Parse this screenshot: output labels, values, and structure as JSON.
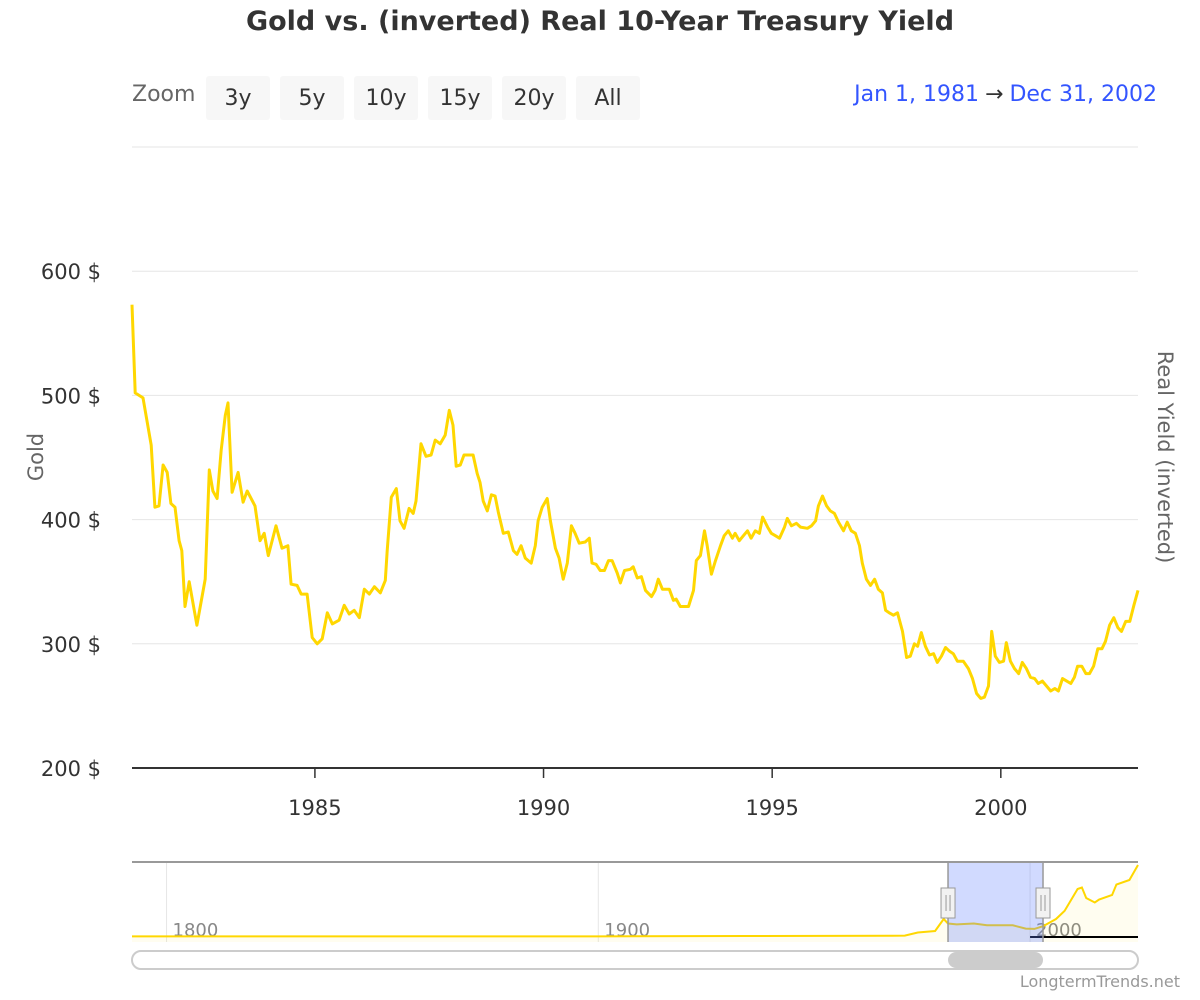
{
  "chart_data": {
    "type": "line",
    "title": "Gold vs. (inverted) Real 10-Year Treasury Yield",
    "ylabel": "Gold",
    "ylabel_right": "Real Yield (inverted)",
    "xlim": [
      1981,
      2003
    ],
    "ylim": [
      200,
      700
    ],
    "y_ticks": [
      200,
      300,
      400,
      500,
      600
    ],
    "y_tick_labels": [
      "200 $",
      "300 $",
      "400 $",
      "500 $",
      "600 $"
    ],
    "x_ticks": [
      1985,
      1990,
      1995,
      2000
    ],
    "x_tick_labels": [
      "1985",
      "1990",
      "1995",
      "2000"
    ],
    "grid": true,
    "series": [
      {
        "name": "Gold",
        "color": "#FFD700",
        "points": [
          [
            1981.0,
            573
          ],
          [
            1981.07,
            502
          ],
          [
            1981.24,
            498
          ],
          [
            1981.42,
            460
          ],
          [
            1981.5,
            410
          ],
          [
            1981.59,
            411
          ],
          [
            1981.68,
            444
          ],
          [
            1981.77,
            438
          ],
          [
            1981.85,
            413
          ],
          [
            1981.94,
            410
          ],
          [
            1982.03,
            383
          ],
          [
            1982.09,
            375
          ],
          [
            1982.16,
            330
          ],
          [
            1982.25,
            350
          ],
          [
            1982.42,
            315
          ],
          [
            1982.6,
            352
          ],
          [
            1982.69,
            440
          ],
          [
            1982.77,
            423
          ],
          [
            1982.86,
            417
          ],
          [
            1982.95,
            456
          ],
          [
            1983.04,
            484
          ],
          [
            1983.1,
            494
          ],
          [
            1983.19,
            422
          ],
          [
            1983.32,
            438
          ],
          [
            1983.43,
            414
          ],
          [
            1983.52,
            423
          ],
          [
            1983.69,
            411
          ],
          [
            1983.8,
            383
          ],
          [
            1983.89,
            389
          ],
          [
            1983.98,
            371
          ],
          [
            1984.15,
            395
          ],
          [
            1984.28,
            377
          ],
          [
            1984.41,
            379
          ],
          [
            1984.48,
            348
          ],
          [
            1984.61,
            347
          ],
          [
            1984.7,
            340
          ],
          [
            1984.83,
            340
          ],
          [
            1984.94,
            305
          ],
          [
            1985.05,
            300
          ],
          [
            1985.16,
            304
          ],
          [
            1985.27,
            325
          ],
          [
            1985.38,
            316
          ],
          [
            1985.53,
            319
          ],
          [
            1985.64,
            331
          ],
          [
            1985.75,
            324
          ],
          [
            1985.86,
            327
          ],
          [
            1985.97,
            321
          ],
          [
            1986.08,
            344
          ],
          [
            1986.19,
            340
          ],
          [
            1986.3,
            346
          ],
          [
            1986.43,
            341
          ],
          [
            1986.54,
            351
          ],
          [
            1986.58,
            375
          ],
          [
            1986.67,
            418
          ],
          [
            1986.78,
            425
          ],
          [
            1986.86,
            399
          ],
          [
            1986.95,
            393
          ],
          [
            1987.06,
            409
          ],
          [
            1987.15,
            405
          ],
          [
            1987.21,
            415
          ],
          [
            1987.32,
            461
          ],
          [
            1987.43,
            451
          ],
          [
            1987.54,
            452
          ],
          [
            1987.63,
            464
          ],
          [
            1987.74,
            461
          ],
          [
            1987.85,
            468
          ],
          [
            1987.94,
            488
          ],
          [
            1988.02,
            476
          ],
          [
            1988.09,
            443
          ],
          [
            1988.18,
            444
          ],
          [
            1988.26,
            452
          ],
          [
            1988.46,
            452
          ],
          [
            1988.55,
            437
          ],
          [
            1988.61,
            430
          ],
          [
            1988.68,
            415
          ],
          [
            1988.77,
            407
          ],
          [
            1988.86,
            420
          ],
          [
            1988.94,
            419
          ],
          [
            1989.01,
            406
          ],
          [
            1989.12,
            389
          ],
          [
            1989.23,
            390
          ],
          [
            1989.34,
            375
          ],
          [
            1989.42,
            372
          ],
          [
            1989.51,
            379
          ],
          [
            1989.6,
            369
          ],
          [
            1989.73,
            365
          ],
          [
            1989.82,
            379
          ],
          [
            1989.88,
            399
          ],
          [
            1989.97,
            410
          ],
          [
            1990.08,
            417
          ],
          [
            1990.15,
            399
          ],
          [
            1990.26,
            377
          ],
          [
            1990.34,
            369
          ],
          [
            1990.43,
            352
          ],
          [
            1990.52,
            365
          ],
          [
            1990.61,
            395
          ],
          [
            1990.69,
            389
          ],
          [
            1990.78,
            381
          ],
          [
            1990.91,
            382
          ],
          [
            1991.0,
            385
          ],
          [
            1991.06,
            365
          ],
          [
            1991.15,
            364
          ],
          [
            1991.24,
            359
          ],
          [
            1991.33,
            359
          ],
          [
            1991.42,
            367
          ],
          [
            1991.5,
            367
          ],
          [
            1991.61,
            357
          ],
          [
            1991.68,
            349
          ],
          [
            1991.77,
            359
          ],
          [
            1991.9,
            360
          ],
          [
            1991.96,
            362
          ],
          [
            1992.05,
            353
          ],
          [
            1992.14,
            354
          ],
          [
            1992.23,
            343
          ],
          [
            1992.36,
            338
          ],
          [
            1992.44,
            343
          ],
          [
            1992.51,
            352
          ],
          [
            1992.6,
            344
          ],
          [
            1992.75,
            344
          ],
          [
            1992.84,
            335
          ],
          [
            1992.9,
            336
          ],
          [
            1992.99,
            330
          ],
          [
            1993.17,
            330
          ],
          [
            1993.28,
            343
          ],
          [
            1993.34,
            367
          ],
          [
            1993.43,
            371
          ],
          [
            1993.52,
            391
          ],
          [
            1993.58,
            379
          ],
          [
            1993.67,
            356
          ],
          [
            1993.76,
            367
          ],
          [
            1993.87,
            379
          ],
          [
            1993.95,
            387
          ],
          [
            1994.04,
            391
          ],
          [
            1994.13,
            385
          ],
          [
            1994.19,
            389
          ],
          [
            1994.28,
            383
          ],
          [
            1994.37,
            387
          ],
          [
            1994.46,
            391
          ],
          [
            1994.54,
            385
          ],
          [
            1994.63,
            391
          ],
          [
            1994.72,
            389
          ],
          [
            1994.79,
            402
          ],
          [
            1994.9,
            394
          ],
          [
            1994.98,
            389
          ],
          [
            1995.07,
            387
          ],
          [
            1995.16,
            385
          ],
          [
            1995.27,
            394
          ],
          [
            1995.33,
            401
          ],
          [
            1995.42,
            395
          ],
          [
            1995.53,
            397
          ],
          [
            1995.62,
            394
          ],
          [
            1995.77,
            393
          ],
          [
            1995.86,
            395
          ],
          [
            1995.95,
            399
          ],
          [
            1996.01,
            411
          ],
          [
            1996.1,
            419
          ],
          [
            1996.19,
            411
          ],
          [
            1996.27,
            407
          ],
          [
            1996.36,
            405
          ],
          [
            1996.45,
            398
          ],
          [
            1996.56,
            391
          ],
          [
            1996.64,
            398
          ],
          [
            1996.73,
            391
          ],
          [
            1996.82,
            389
          ],
          [
            1996.91,
            379
          ],
          [
            1996.97,
            365
          ],
          [
            1997.06,
            352
          ],
          [
            1997.15,
            347
          ],
          [
            1997.24,
            352
          ],
          [
            1997.32,
            344
          ],
          [
            1997.41,
            341
          ],
          [
            1997.48,
            327
          ],
          [
            1997.56,
            325
          ],
          [
            1997.65,
            323
          ],
          [
            1997.74,
            325
          ],
          [
            1997.85,
            310
          ],
          [
            1997.94,
            289
          ],
          [
            1998.02,
            290
          ],
          [
            1998.11,
            300
          ],
          [
            1998.18,
            298
          ],
          [
            1998.26,
            309
          ],
          [
            1998.35,
            298
          ],
          [
            1998.44,
            291
          ],
          [
            1998.53,
            292
          ],
          [
            1998.61,
            285
          ],
          [
            1998.7,
            290
          ],
          [
            1998.79,
            297
          ],
          [
            1998.88,
            294
          ],
          [
            1998.96,
            292
          ],
          [
            1999.05,
            286
          ],
          [
            1999.18,
            286
          ],
          [
            1999.29,
            280
          ],
          [
            1999.38,
            272
          ],
          [
            1999.47,
            260
          ],
          [
            1999.56,
            256
          ],
          [
            1999.64,
            257
          ],
          [
            1999.73,
            266
          ],
          [
            1999.8,
            310
          ],
          [
            1999.88,
            290
          ],
          [
            1999.97,
            285
          ],
          [
            2000.06,
            286
          ],
          [
            2000.12,
            301
          ],
          [
            2000.21,
            286
          ],
          [
            2000.3,
            280
          ],
          [
            2000.39,
            276
          ],
          [
            2000.47,
            285
          ],
          [
            2000.56,
            280
          ],
          [
            2000.65,
            273
          ],
          [
            2000.74,
            272
          ],
          [
            2000.82,
            268
          ],
          [
            2000.91,
            270
          ],
          [
            2001.0,
            266
          ],
          [
            2001.09,
            262
          ],
          [
            2001.18,
            264
          ],
          [
            2001.26,
            262
          ],
          [
            2001.35,
            272
          ],
          [
            2001.44,
            270
          ],
          [
            2001.53,
            268
          ],
          [
            2001.61,
            273
          ],
          [
            2001.68,
            282
          ],
          [
            2001.77,
            282
          ],
          [
            2001.86,
            276
          ],
          [
            2001.94,
            276
          ],
          [
            2002.03,
            282
          ],
          [
            2002.12,
            296
          ],
          [
            2002.21,
            296
          ],
          [
            2002.29,
            302
          ],
          [
            2002.38,
            315
          ],
          [
            2002.47,
            321
          ],
          [
            2002.56,
            313
          ],
          [
            2002.64,
            310
          ],
          [
            2002.73,
            318
          ],
          [
            2002.82,
            318
          ],
          [
            2002.91,
            331
          ],
          [
            2003.0,
            343
          ]
        ]
      }
    ],
    "navigator": {
      "xlim": [
        1792,
        2025
      ],
      "ylim": [
        0,
        2500
      ],
      "x_ticks": [
        1800,
        1900,
        2000
      ],
      "x_tick_labels": [
        "1800",
        "1900",
        "2000"
      ],
      "selected_range": [
        1981,
        2003
      ],
      "points": [
        [
          1792,
          20
        ],
        [
          1833,
          20
        ],
        [
          1900,
          20
        ],
        [
          1934,
          35
        ],
        [
          1968,
          40
        ],
        [
          1971,
          45
        ],
        [
          1974,
          150
        ],
        [
          1978,
          200
        ],
        [
          1980,
          600
        ],
        [
          1981,
          450
        ],
        [
          1983,
          420
        ],
        [
          1987,
          450
        ],
        [
          1990,
          390
        ],
        [
          1996,
          390
        ],
        [
          1999,
          280
        ],
        [
          2001,
          270
        ],
        [
          2003,
          360
        ],
        [
          2006,
          600
        ],
        [
          2008,
          870
        ],
        [
          2011,
          1600
        ],
        [
          2012,
          1650
        ],
        [
          2013,
          1300
        ],
        [
          2015,
          1150
        ],
        [
          2016,
          1250
        ],
        [
          2019,
          1400
        ],
        [
          2020,
          1750
        ],
        [
          2023,
          1900
        ],
        [
          2025,
          2400
        ]
      ]
    }
  },
  "zoom": {
    "label": "Zoom",
    "buttons": [
      "3y",
      "5y",
      "10y",
      "15y",
      "20y",
      "All"
    ]
  },
  "range": {
    "from": "Jan 1, 1981",
    "sep": "→",
    "to": "Dec 31, 2002"
  },
  "credit": "LongtermTrends.net"
}
